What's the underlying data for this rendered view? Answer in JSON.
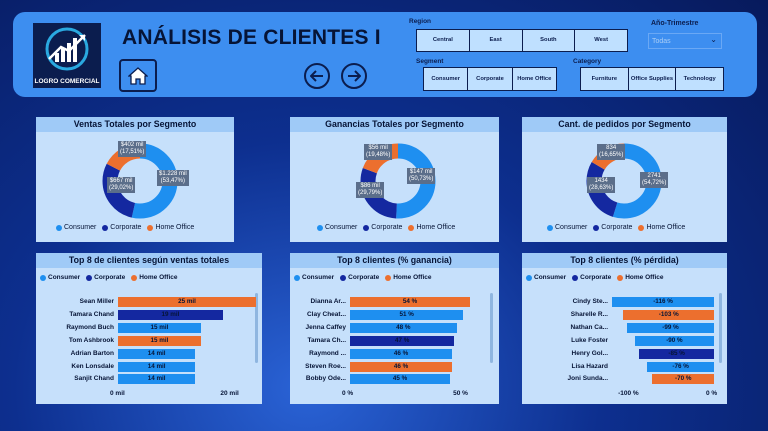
{
  "header": {
    "title": "ANÁLISIS DE CLIENTES I",
    "logo_text": "LOGRO COMERCIAL",
    "labels": {
      "region": "Region",
      "year": "Año-Trimestre",
      "segment": "Segment",
      "category": "Category"
    },
    "regions": [
      "Central",
      "East",
      "South",
      "West"
    ],
    "segments": [
      "Consumer",
      "Corporate",
      "Home Office"
    ],
    "categories": [
      "Furniture",
      "Office Supplies",
      "Technology"
    ],
    "year_value": "Todas"
  },
  "colors": {
    "consumer": "#1e8ff0",
    "corporate": "#1428a0",
    "home_office": "#ec6f2e"
  },
  "legend": {
    "consumer": "Consumer",
    "corporate": "Corporate",
    "home_office": "Home Office"
  },
  "donuts": [
    {
      "title": "Ventas Totales por Segmento",
      "slices": [
        {
          "label": "$1.228 mil\n(53,47%)",
          "pct": 53.47
        },
        {
          "label": "$667 mil\n(29,02%)",
          "pct": 29.02
        },
        {
          "label": "$402 mil\n(17,51%)",
          "pct": 17.51
        }
      ]
    },
    {
      "title": "Ganancias Totales por Segmento",
      "slices": [
        {
          "label": "$147 mil\n(50,73%)",
          "pct": 50.73
        },
        {
          "label": "$86 mil\n(29,79%)",
          "pct": 29.79
        },
        {
          "label": "$56 mil\n(19,48%)",
          "pct": 19.48
        }
      ]
    },
    {
      "title": "Cant. de pedidos por Segmento",
      "slices": [
        {
          "label": "2741\n(54,72%)",
          "pct": 54.72
        },
        {
          "label": "1434\n(28,63%)",
          "pct": 28.63
        },
        {
          "label": "834\n(16,65%)",
          "pct": 16.65
        }
      ]
    }
  ],
  "bars": [
    {
      "title": "Top 8 de clientes según ventas totales",
      "min": 0,
      "max": 25,
      "ticks": [
        "0 mil",
        "20 mil"
      ],
      "rows": [
        {
          "name": "Sean Miller",
          "value": 25,
          "label": "25 mil",
          "seg": "home_office"
        },
        {
          "name": "Tamara Chand",
          "value": 19,
          "label": "19 mil",
          "seg": "corporate"
        },
        {
          "name": "Raymond Buch",
          "value": 15,
          "label": "15 mil",
          "seg": "consumer"
        },
        {
          "name": "Tom Ashbrook",
          "value": 15,
          "label": "15 mil",
          "seg": "home_office"
        },
        {
          "name": "Adrian Barton",
          "value": 14,
          "label": "14 mil",
          "seg": "consumer"
        },
        {
          "name": "Ken Lonsdale",
          "value": 14,
          "label": "14 mil",
          "seg": "consumer"
        },
        {
          "name": "Sanjit Chand",
          "value": 14,
          "label": "14 mil",
          "seg": "consumer"
        }
      ]
    },
    {
      "title": "Top 8 clientes (% ganancia)",
      "min": 0,
      "max": 54,
      "ticks": [
        "0 %",
        "50 %"
      ],
      "rows": [
        {
          "name": "Dianna Ar...",
          "value": 54,
          "label": "54 %",
          "seg": "home_office"
        },
        {
          "name": "Clay Cheat...",
          "value": 51,
          "label": "51 %",
          "seg": "consumer"
        },
        {
          "name": "Jenna Caffey",
          "value": 48,
          "label": "48 %",
          "seg": "consumer"
        },
        {
          "name": "Tamara Ch...",
          "value": 47,
          "label": "47 %",
          "seg": "corporate"
        },
        {
          "name": "Raymond ...",
          "value": 46,
          "label": "46 %",
          "seg": "consumer"
        },
        {
          "name": "Steven Roe...",
          "value": 46,
          "label": "46 %",
          "seg": "home_office"
        },
        {
          "name": "Bobby Ode...",
          "value": 45,
          "label": "45 %",
          "seg": "consumer"
        }
      ]
    },
    {
      "title": "Top 8 clientes (% pérdida)",
      "min": -116,
      "max": 0,
      "ticks": [
        "-100 %",
        "0 %"
      ],
      "rows": [
        {
          "name": "Cindy Ste...",
          "value": -116,
          "label": "-116 %",
          "seg": "consumer"
        },
        {
          "name": "Sharelle R...",
          "value": -103,
          "label": "-103 %",
          "seg": "home_office"
        },
        {
          "name": "Nathan Ca...",
          "value": -99,
          "label": "-99 %",
          "seg": "consumer"
        },
        {
          "name": "Luke Foster",
          "value": -90,
          "label": "-90 %",
          "seg": "consumer"
        },
        {
          "name": "Henry Gol...",
          "value": -85,
          "label": "-85 %",
          "seg": "corporate"
        },
        {
          "name": "Lisa Hazard",
          "value": -76,
          "label": "-76 %",
          "seg": "consumer"
        },
        {
          "name": "Joni Sunda...",
          "value": -70,
          "label": "-70 %",
          "seg": "home_office"
        }
      ]
    }
  ]
}
